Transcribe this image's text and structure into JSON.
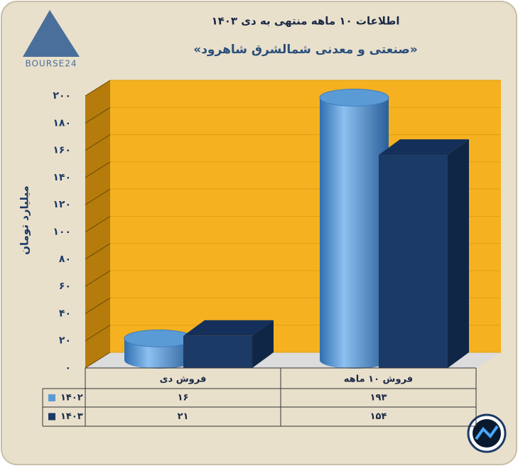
{
  "chart_data": {
    "type": "bar3d",
    "title": "اطلاعات ۱۰ ماهه منتهی به دی ۱۴۰۳",
    "subtitle": "«صنعتی و معدنی شمالشرق شاهرود»",
    "logo_text": "BOURSE24",
    "y_axis_label": "میلیارد تومان",
    "categories": [
      "فروش دی",
      "فروش ۱۰ ماهه"
    ],
    "series": [
      {
        "name": "۱۴۰۲",
        "color": "#5b9bd5",
        "shape": "cylinder",
        "values": [
          16,
          193
        ],
        "value_labels": [
          "۱۶",
          "۱۹۳"
        ]
      },
      {
        "name": "۱۴۰۳",
        "color": "#1b3a66",
        "shape": "box",
        "values": [
          21,
          154
        ],
        "value_labels": [
          "۲۱",
          "۱۵۴"
        ]
      }
    ],
    "ylim": [
      0,
      200
    ],
    "yticks": [
      {
        "value": 0,
        "label": "۰"
      },
      {
        "value": 20,
        "label": "۲۰"
      },
      {
        "value": 40,
        "label": "۴۰"
      },
      {
        "value": 60,
        "label": "۶۰"
      },
      {
        "value": 80,
        "label": "۸۰"
      },
      {
        "value": 100,
        "label": "۱۰۰"
      },
      {
        "value": 120,
        "label": "۱۲۰"
      },
      {
        "value": 140,
        "label": "۱۴۰"
      },
      {
        "value": 160,
        "label": "۱۶۰"
      },
      {
        "value": 180,
        "label": "۱۸۰"
      },
      {
        "value": 200,
        "label": "۲۰۰"
      }
    ],
    "grid": true
  }
}
